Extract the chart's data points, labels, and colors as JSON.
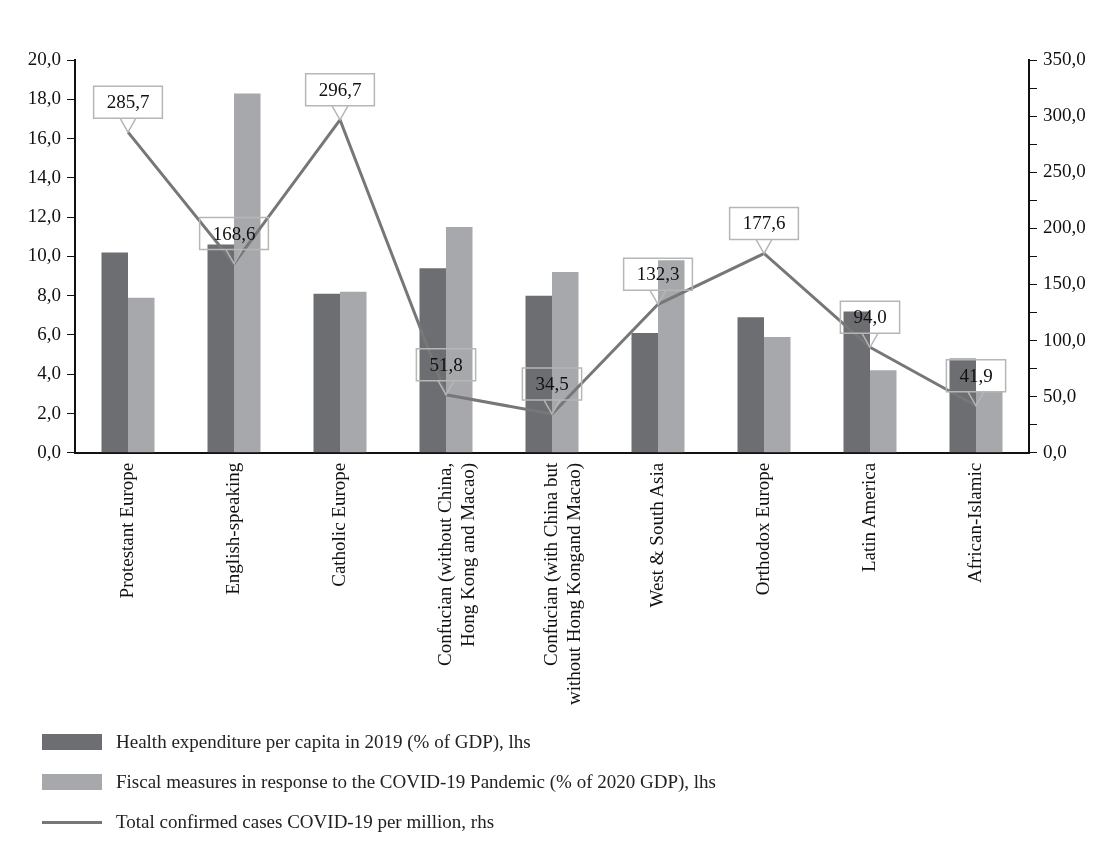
{
  "chart_data": {
    "type": "bar",
    "categories": [
      "Protestant Europe",
      "English-speaking",
      "Catholic Europe",
      "Confucian (without China,\nHong Kong and Macao)",
      "Confucian (with China but\nwithout Hong Kongand Macao)",
      "West & South Asia",
      "Orthodox Europe",
      "Latin America",
      "African-Islamic"
    ],
    "series": [
      {
        "name": "Health expenditure per capita in 2019 (% of GDP), lhs",
        "color": "#6d6e71",
        "values": [
          10.2,
          10.6,
          8.1,
          9.4,
          8.0,
          6.1,
          6.9,
          7.2,
          4.8
        ]
      },
      {
        "name": "Fiscal measures in response to the COVID-19 Pandemic (% of 2020 GDP), lhs",
        "color": "#a7a8ab",
        "values": [
          7.9,
          18.3,
          8.2,
          11.5,
          9.2,
          9.8,
          5.9,
          4.2,
          3.1
        ]
      },
      {
        "name": "Total confirmed cases COVID-19 per million, rhs",
        "type": "line",
        "axis": "y2",
        "color": "#77777a",
        "values": [
          285.7,
          168.6,
          296.7,
          51.8,
          34.5,
          132.3,
          177.6,
          94.0,
          41.9
        ],
        "value_labels": [
          "285,7",
          "168,6",
          "296,7",
          "51,8",
          "34,5",
          "132,3",
          "177,6",
          "94,0",
          "41,9"
        ]
      }
    ],
    "ylim": [
      0,
      20
    ],
    "yticks": [
      {
        "value": 0,
        "label": "0,0"
      },
      {
        "value": 2,
        "label": "2,0"
      },
      {
        "value": 4,
        "label": "4,0"
      },
      {
        "value": 6,
        "label": "6,0"
      },
      {
        "value": 8,
        "label": "8,0"
      },
      {
        "value": 10,
        "label": "10,0"
      },
      {
        "value": 12,
        "label": "12,0"
      },
      {
        "value": 14,
        "label": "14,0"
      },
      {
        "value": 16,
        "label": "16,0"
      },
      {
        "value": 18,
        "label": "18,0"
      },
      {
        "value": 20,
        "label": "20,0"
      }
    ],
    "y2lim": [
      0,
      350
    ],
    "y2ticks": [
      {
        "value": 0,
        "label": "0,0"
      },
      {
        "value": 25,
        "label": null
      },
      {
        "value": 50,
        "label": "50,0"
      },
      {
        "value": 75,
        "label": null
      },
      {
        "value": 100,
        "label": "100,0"
      },
      {
        "value": 125,
        "label": null
      },
      {
        "value": 150,
        "label": "150,0"
      },
      {
        "value": 175,
        "label": null
      },
      {
        "value": 200,
        "label": "200,0"
      },
      {
        "value": 225,
        "label": null
      },
      {
        "value": 250,
        "label": "250,0"
      },
      {
        "value": 275,
        "label": null
      },
      {
        "value": 300,
        "label": "300,0"
      },
      {
        "value": 325,
        "label": null
      },
      {
        "value": 350,
        "label": "350,0"
      }
    ],
    "grid": false,
    "legend": "bottom",
    "marker": "none"
  }
}
